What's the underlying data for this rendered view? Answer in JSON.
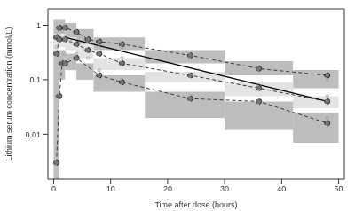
{
  "chart_data": {
    "type": "line",
    "x_label": "Time after dose (hours)",
    "y_label": "Lithium serum concentration (mmol/L)",
    "log": "y",
    "xlim": [
      -1,
      51
    ],
    "ylim": [
      0.0015,
      2
    ],
    "xticks": [
      0,
      10,
      20,
      30,
      40,
      50
    ],
    "yticks": [
      0.01,
      0.1,
      1
    ],
    "bins": [
      0,
      1,
      2,
      4,
      7,
      16,
      30,
      42,
      50
    ],
    "intervals": [
      {
        "color": "#bdbdbd",
        "ranges": [
          [
            0.3,
            1.3
          ],
          [
            0.7,
            1.3
          ],
          [
            0.6,
            1.1
          ],
          [
            0.45,
            0.85
          ],
          [
            0.35,
            0.6
          ],
          [
            0.2,
            0.35
          ],
          [
            0.12,
            0.22
          ],
          [
            0.07,
            0.15
          ]
        ]
      },
      {
        "color": "#e3e3e3",
        "ranges": [
          [
            0.05,
            0.7
          ],
          [
            0.4,
            0.7
          ],
          [
            0.35,
            0.6
          ],
          [
            0.25,
            0.45
          ],
          [
            0.15,
            0.25
          ],
          [
            0.09,
            0.14
          ],
          [
            0.05,
            0.09
          ],
          [
            0.03,
            0.05
          ]
        ]
      },
      {
        "color": "#bdbdbd",
        "ranges": [
          [
            0.0015,
            0.3
          ],
          [
            0.1,
            0.35
          ],
          [
            0.15,
            0.3
          ],
          [
            0.1,
            0.2
          ],
          [
            0.06,
            0.12
          ],
          [
            0.02,
            0.06
          ],
          [
            0.012,
            0.04
          ],
          [
            0.007,
            0.025
          ]
        ]
      }
    ],
    "series": [
      {
        "type": "scatter",
        "color": "#9a9a9a",
        "marker": "circle",
        "x": [
          0.5,
          0.5,
          1,
          1,
          1,
          1.5,
          2,
          2,
          2,
          3,
          4,
          4,
          6,
          6,
          8,
          8,
          12,
          12,
          12,
          24,
          24,
          24,
          36,
          36,
          36,
          48,
          48,
          48
        ],
        "values": [
          0.05,
          0.4,
          0.2,
          0.6,
          0.9,
          0.8,
          0.3,
          0.6,
          1.0,
          0.5,
          0.3,
          0.7,
          0.25,
          0.5,
          0.15,
          0.45,
          0.1,
          0.25,
          0.4,
          0.05,
          0.12,
          0.25,
          0.04,
          0.08,
          0.15,
          0.02,
          0.05,
          0.1
        ]
      },
      {
        "type": "line",
        "color": "#000000",
        "line_style": "solid",
        "x": [
          2,
          48
        ],
        "values": [
          0.6,
          0.04
        ]
      },
      {
        "type": "line",
        "color": "#333333",
        "line_style": "dashed",
        "marker": "circle",
        "x": [
          0.5,
          1,
          2,
          4,
          6,
          8,
          12,
          24,
          36,
          48
        ],
        "values": [
          0.6,
          0.9,
          0.9,
          0.75,
          0.55,
          0.5,
          0.45,
          0.28,
          0.16,
          0.12
        ]
      },
      {
        "type": "line",
        "color": "#333333",
        "line_style": "dashed",
        "marker": "circle",
        "x": [
          0.5,
          1,
          2,
          4,
          6,
          8,
          12,
          24,
          36,
          48
        ],
        "values": [
          0.3,
          0.55,
          0.55,
          0.45,
          0.35,
          0.3,
          0.2,
          0.12,
          0.07,
          0.04
        ]
      },
      {
        "type": "line",
        "color": "#333333",
        "line_style": "dashed",
        "marker": "circle",
        "x": [
          0.5,
          1,
          1.5,
          2,
          4,
          8,
          12,
          24,
          36,
          48
        ],
        "values": [
          0.003,
          0.05,
          0.2,
          0.2,
          0.25,
          0.12,
          0.09,
          0.045,
          0.04,
          0.016
        ]
      }
    ]
  }
}
